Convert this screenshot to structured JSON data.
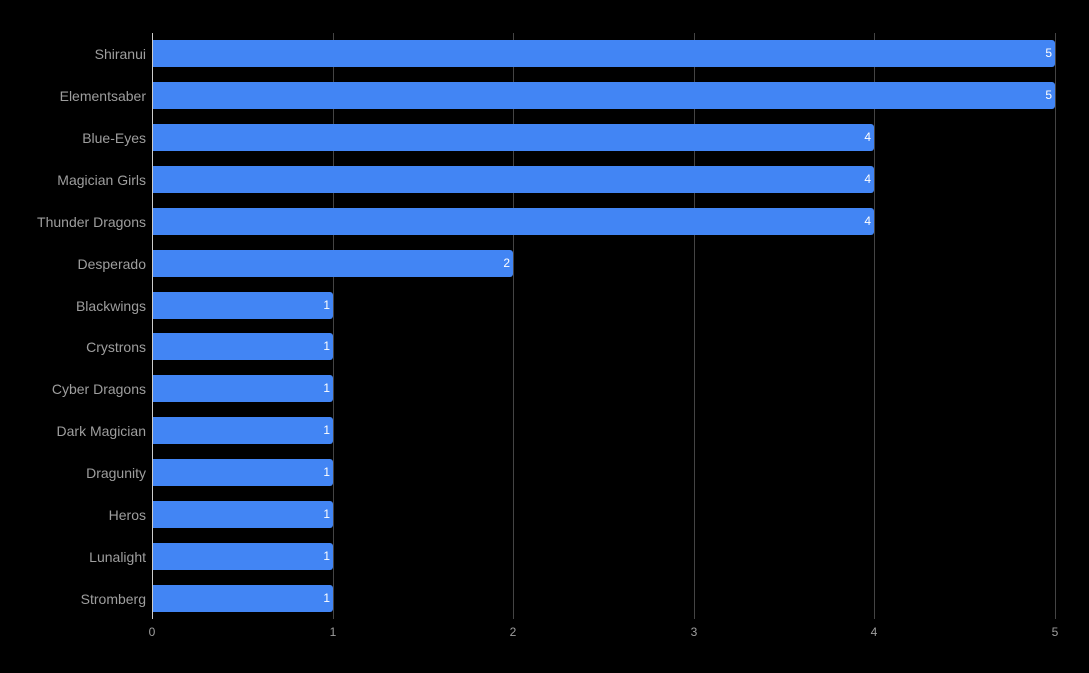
{
  "chart_data": {
    "type": "bar",
    "orientation": "horizontal",
    "title": "",
    "xlabel": "",
    "ylabel": "",
    "categories": [
      "Shiranui",
      "Elementsaber",
      "Blue-Eyes",
      "Magician Girls",
      "Thunder Dragons",
      "Desperado",
      "Blackwings",
      "Crystrons",
      "Cyber Dragons",
      "Dark Magician",
      "Dragunity",
      "Heros",
      "Lunalight",
      "Stromberg"
    ],
    "values": [
      5,
      5,
      4,
      4,
      4,
      2,
      1,
      1,
      1,
      1,
      1,
      1,
      1,
      1
    ],
    "xlim": [
      0,
      5
    ],
    "x_ticks": [
      "0",
      "1",
      "2",
      "3",
      "4",
      "5"
    ],
    "grid": true,
    "data_labels": true,
    "legend": "none",
    "colors": {
      "bar": "#4285f4",
      "background": "#000000",
      "grid": "#444444",
      "text": "#9e9e9e",
      "data_label": "#ffffff"
    }
  }
}
